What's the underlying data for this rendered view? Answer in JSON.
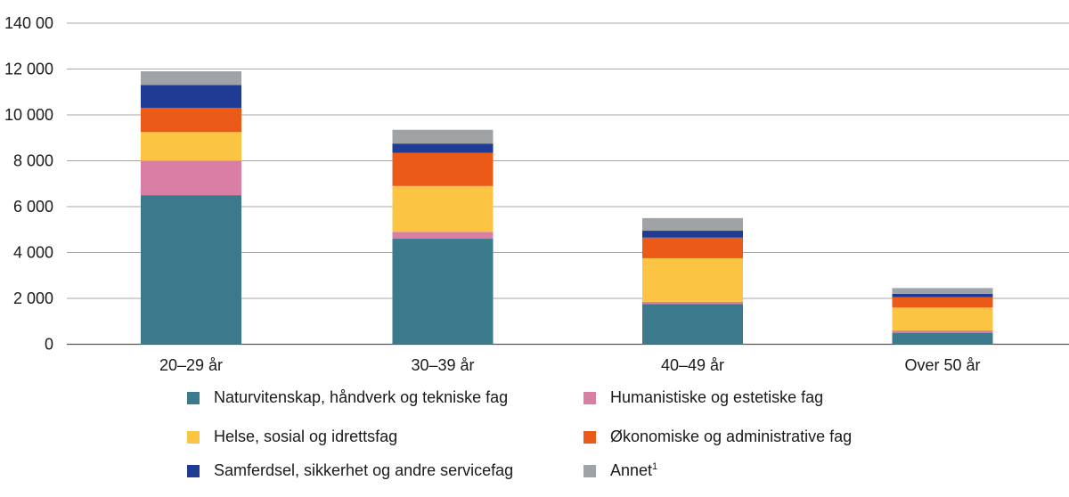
{
  "chart_data": {
    "type": "bar",
    "stacked": true,
    "title": "",
    "xlabel": "",
    "ylabel": "",
    "ylim": [
      0,
      14000
    ],
    "yticks": [
      0,
      2000,
      4000,
      6000,
      8000,
      10000,
      12000,
      14000
    ],
    "ytick_labels": [
      "0",
      "2 000",
      "4 000",
      "6 000",
      "8 000",
      "10 000",
      "12 000",
      "140 00"
    ],
    "grid": true,
    "categories": [
      "20–29 år",
      "30–39 år",
      "40–49 år",
      "Over 50 år"
    ],
    "series": [
      {
        "name": "Naturvitenskap, håndverk og tekniske fag",
        "color": "#3a7a8c",
        "values": [
          6500,
          4600,
          1750,
          500
        ]
      },
      {
        "name": "Humanistiske og estetiske fag",
        "color": "#d97fa6",
        "values": [
          1500,
          300,
          100,
          100
        ]
      },
      {
        "name": "Helse, sosial og idrettsfag",
        "color": "#fcc443",
        "values": [
          1250,
          2000,
          1900,
          1000
        ]
      },
      {
        "name": "Økonomiske og administrative fag",
        "color": "#ec5a18",
        "values": [
          1050,
          1450,
          900,
          450
        ]
      },
      {
        "name": "Samferdsel, sikkerhet og andre servicefag",
        "color": "#1f3b93",
        "values": [
          1000,
          400,
          300,
          150
        ]
      },
      {
        "name": "Annet",
        "color": "#a0a3a6",
        "values": [
          600,
          600,
          550,
          250
        ]
      }
    ],
    "legend_position": "bottom",
    "legend_footnote": "1"
  }
}
